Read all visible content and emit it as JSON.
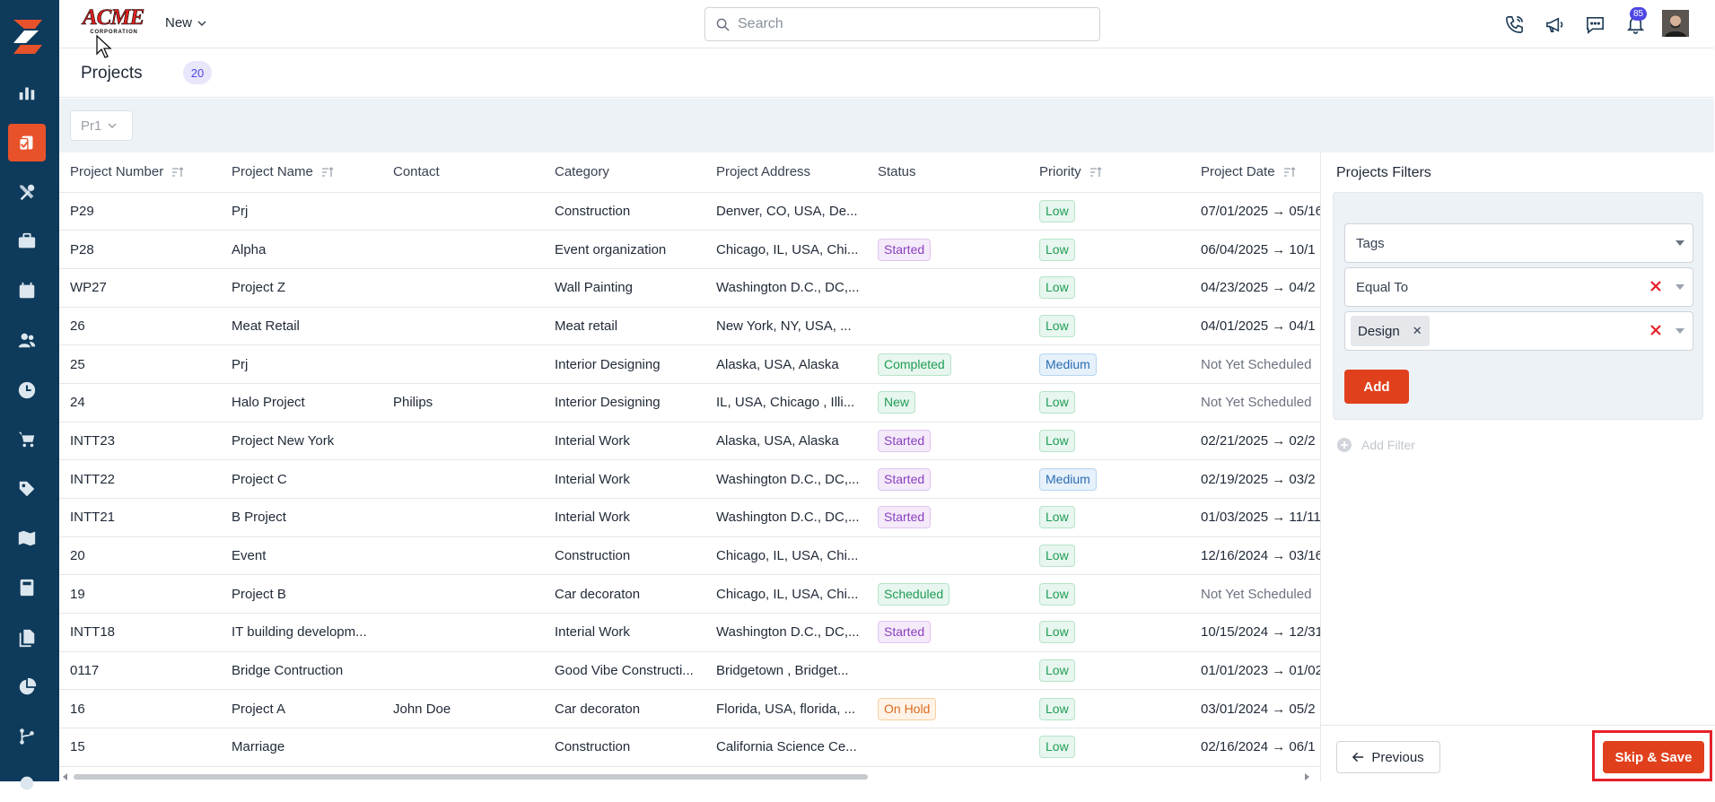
{
  "header": {
    "brand_line1": "ACME",
    "brand_line2": "CORPORATION",
    "new_label": "New",
    "search_placeholder": "Search",
    "notification_count": "85"
  },
  "page": {
    "title": "Projects",
    "count": "20",
    "view_select": "Pr1"
  },
  "table": {
    "columns": [
      "Project Number",
      "Project Name",
      "Contact",
      "Category",
      "Project Address",
      "Status",
      "Priority",
      "Project Date"
    ],
    "rows": [
      {
        "number": "P29",
        "name": "Prj",
        "contact": "",
        "category": "Construction",
        "address": "Denver, CO, USA, De...",
        "status": "",
        "priority": "Low",
        "date": "07/01/2025 → 05/16"
      },
      {
        "number": "P28",
        "name": "Alpha",
        "contact": "",
        "category": "Event organization",
        "address": "Chicago, IL, USA, Chi...",
        "status": "Started",
        "priority": "Low",
        "date": "06/04/2025 → 10/1"
      },
      {
        "number": "WP27",
        "name": "Project Z",
        "contact": "",
        "category": "Wall Painting",
        "address": "Washington D.C., DC,...",
        "status": "",
        "priority": "Low",
        "date": "04/23/2025 → 04/2"
      },
      {
        "number": "26",
        "name": "Meat Retail",
        "contact": "",
        "category": "Meat retail",
        "address": "New York, NY, USA, ...",
        "status": "",
        "priority": "Low",
        "date": "04/01/2025 → 04/1"
      },
      {
        "number": "25",
        "name": "Prj",
        "contact": "",
        "category": "Interior Designing",
        "address": "Alaska, USA, Alaska",
        "status": "Completed",
        "priority": "Medium",
        "date": "Not Yet Scheduled"
      },
      {
        "number": "24",
        "name": "Halo Project",
        "contact": "Philips",
        "category": "Interior Designing",
        "address": "IL, USA, Chicago , Illi...",
        "status": "New",
        "priority": "Low",
        "date": "Not Yet Scheduled"
      },
      {
        "number": "INTT23",
        "name": "Project New York",
        "contact": "",
        "category": "Interial Work",
        "address": "Alaska, USA, Alaska",
        "status": "Started",
        "priority": "Low",
        "date": "02/21/2025 → 02/2"
      },
      {
        "number": "INTT22",
        "name": "Project C",
        "contact": "",
        "category": "Interial Work",
        "address": "Washington D.C., DC,...",
        "status": "Started",
        "priority": "Medium",
        "date": "02/19/2025 → 03/2"
      },
      {
        "number": "INTT21",
        "name": "B Project",
        "contact": "",
        "category": "Interial Work",
        "address": "Washington D.C., DC,...",
        "status": "Started",
        "priority": "Low",
        "date": "01/03/2025 → 11/11"
      },
      {
        "number": "20",
        "name": "Event",
        "contact": "",
        "category": "Construction",
        "address": "Chicago, IL, USA, Chi...",
        "status": "",
        "priority": "Low",
        "date": "12/16/2024 → 03/16"
      },
      {
        "number": "19",
        "name": "Project B",
        "contact": "",
        "category": "Car decoraton",
        "address": "Chicago, IL, USA, Chi...",
        "status": "Scheduled",
        "priority": "Low",
        "date": "Not Yet Scheduled"
      },
      {
        "number": "INTT18",
        "name": "IT building developm...",
        "contact": "",
        "category": "Interial Work",
        "address": "Washington D.C., DC,...",
        "status": "Started",
        "priority": "Low",
        "date": "10/15/2024 → 12/31"
      },
      {
        "number": "0117",
        "name": "Bridge Contruction",
        "contact": "",
        "category": "Good Vibe Constructi...",
        "address": "Bridgetown , Bridget...",
        "status": "",
        "priority": "Low",
        "date": "01/01/2023 → 01/02"
      },
      {
        "number": "16",
        "name": "Project A",
        "contact": "John Doe",
        "category": "Car decoraton",
        "address": "Florida, USA, florida, ...",
        "status": "On Hold",
        "priority": "Low",
        "date": "03/01/2024 → 05/2"
      },
      {
        "number": "15",
        "name": "Marriage",
        "contact": "",
        "category": "Construction",
        "address": "California Science Ce...",
        "status": "",
        "priority": "Low",
        "date": "02/16/2024 → 06/1"
      }
    ]
  },
  "filters": {
    "title": "Projects Filters",
    "field_label": "Tags",
    "operator": "Equal To",
    "value_chip": "Design",
    "add_label": "Add",
    "add_filter_label": "Add Filter",
    "previous_label": "Previous",
    "skip_save_label": "Skip & Save"
  },
  "colors": {
    "sidebar_bg": "#0e3a5b",
    "accent": "#e0401c",
    "highlight_outline": "#e5202a"
  }
}
